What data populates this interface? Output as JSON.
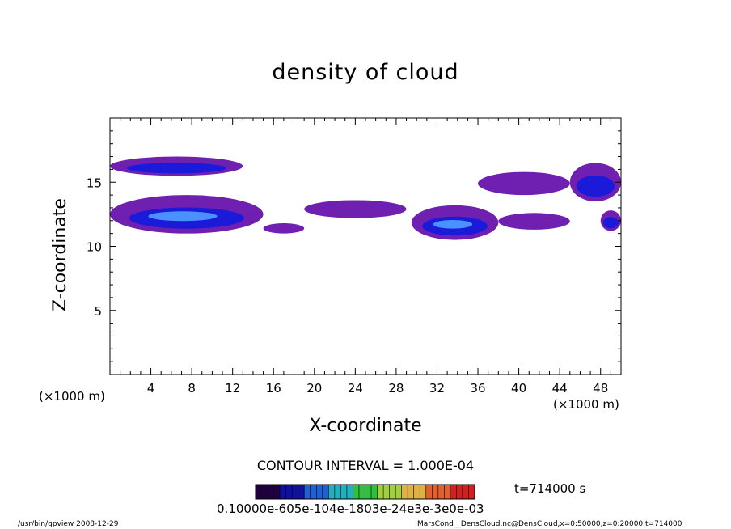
{
  "chart_data": {
    "type": "heatmap",
    "title": "density of cloud",
    "xlabel": "X-coordinate",
    "ylabel": "Z-coordinate",
    "x_unit": "(×1000 m)",
    "y_unit": "(×1000 m)",
    "xlim": [
      0,
      50
    ],
    "ylim": [
      0,
      20
    ],
    "x_ticks": [
      "4",
      "8",
      "12",
      "16",
      "20",
      "24",
      "28",
      "32",
      "36",
      "40",
      "44",
      "48"
    ],
    "y_ticks": [
      "5",
      "10",
      "15"
    ],
    "x_tick_values": [
      4,
      8,
      12,
      16,
      20,
      24,
      28,
      32,
      36,
      40,
      44,
      48
    ],
    "y_tick_values": [
      5,
      10,
      15
    ],
    "contour_interval": "CONTOUR INTERVAL = 1.000E-04",
    "time_label": "t=714000 s",
    "colorbar_labels": "0.10000e-605e-104e-1803e-24e3e-3e0e-03",
    "colorbar_range": [
      0.0001,
      0.001
    ],
    "colors": {
      "low": "#7020b0",
      "mid": "#1a1ad8",
      "high": "#4a90ff",
      "colorbar_stops": [
        "#200040",
        "#1010a0",
        "#2060d0",
        "#20b0c0",
        "#30c040",
        "#a0d040",
        "#e0b040",
        "#e06030",
        "#d02020"
      ]
    },
    "cloud_regions": [
      {
        "x": [
          0,
          13
        ],
        "z": [
          15.5,
          17.0
        ],
        "peak": 0.0004
      },
      {
        "x": [
          0,
          15
        ],
        "z": [
          11.0,
          14.0
        ],
        "peak": 0.0006
      },
      {
        "x": [
          15,
          19
        ],
        "z": [
          11.0,
          11.8
        ],
        "peak": 0.0002
      },
      {
        "x": [
          19,
          29
        ],
        "z": [
          12.2,
          13.6
        ],
        "peak": 0.0002
      },
      {
        "x": [
          29.5,
          38
        ],
        "z": [
          10.5,
          13.2
        ],
        "peak": 0.0006
      },
      {
        "x": [
          36,
          45
        ],
        "z": [
          14.0,
          15.8
        ],
        "peak": 0.0002
      },
      {
        "x": [
          38,
          45
        ],
        "z": [
          11.3,
          12.6
        ],
        "peak": 0.0002
      },
      {
        "x": [
          45,
          50
        ],
        "z": [
          13.5,
          16.5
        ],
        "peak": 0.0003
      },
      {
        "x": [
          48,
          50
        ],
        "z": [
          11.2,
          12.8
        ],
        "peak": 0.0003
      }
    ]
  },
  "footer": {
    "left": "/usr/bin/gpview   2008-12-29",
    "right": "MarsCond__DensCloud.nc@DensCloud,x=0:50000,z=0:20000,t=714000"
  }
}
